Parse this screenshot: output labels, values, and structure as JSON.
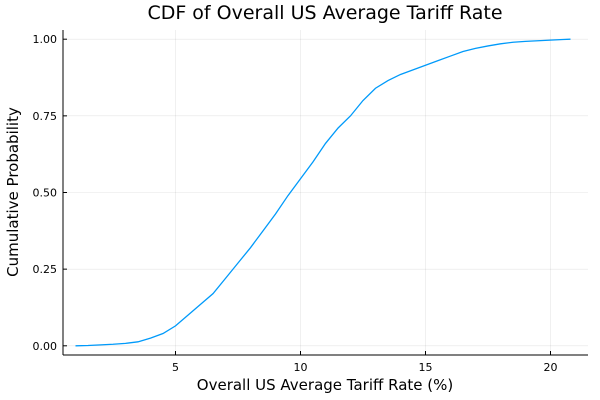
{
  "chart_data": {
    "type": "line",
    "title": "CDF of Overall US Average Tariff Rate",
    "xlabel": "Overall US Average Tariff Rate (%)",
    "ylabel": "Cumulative Probability",
    "xlim": [
      0.5,
      21.5
    ],
    "ylim": [
      -0.03,
      1.03
    ],
    "xticks": [
      5,
      10,
      15,
      20
    ],
    "xtick_labels": [
      "5",
      "10",
      "15",
      "20"
    ],
    "yticks": [
      0,
      0.25,
      0.5,
      0.75,
      1
    ],
    "ytick_labels": [
      "0.00",
      "0.25",
      "0.50",
      "0.75",
      "1.00"
    ],
    "grid": true,
    "legend": "none",
    "series": [
      {
        "name": "CDF",
        "color": "#009AFA",
        "x": [
          1.0,
          1.5,
          2.0,
          2.5,
          3.0,
          3.5,
          4.0,
          4.5,
          5.0,
          5.5,
          6.0,
          6.5,
          7.0,
          7.5,
          8.0,
          8.5,
          9.0,
          9.5,
          10.0,
          10.5,
          11.0,
          11.5,
          12.0,
          12.5,
          13.0,
          13.5,
          14.0,
          14.5,
          15.0,
          15.5,
          16.0,
          16.5,
          17.0,
          17.5,
          18.0,
          18.5,
          19.0,
          19.5,
          20.0,
          20.5,
          20.8
        ],
        "y": [
          0.0,
          0.001,
          0.003,
          0.005,
          0.008,
          0.013,
          0.025,
          0.04,
          0.065,
          0.1,
          0.135,
          0.17,
          0.22,
          0.27,
          0.32,
          0.375,
          0.43,
          0.49,
          0.545,
          0.6,
          0.66,
          0.71,
          0.75,
          0.8,
          0.84,
          0.865,
          0.885,
          0.9,
          0.915,
          0.93,
          0.945,
          0.96,
          0.97,
          0.978,
          0.985,
          0.99,
          0.993,
          0.995,
          0.997,
          0.999,
          1.0
        ]
      }
    ]
  }
}
